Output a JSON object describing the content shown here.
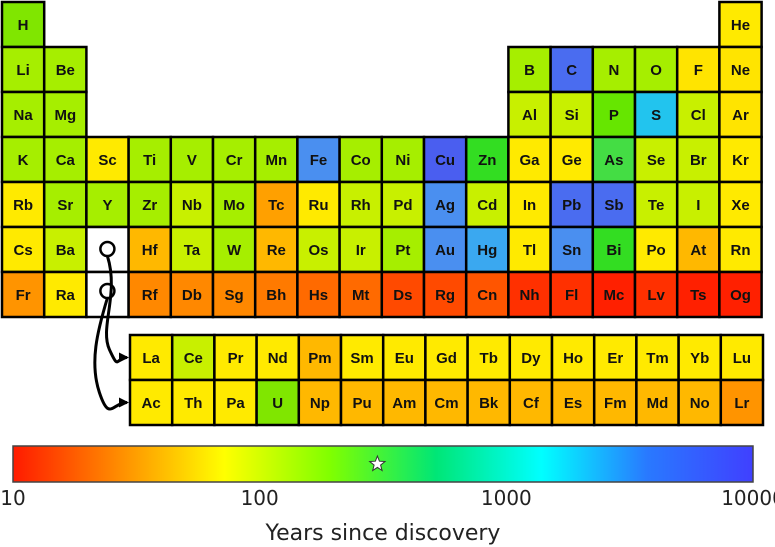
{
  "legend": {
    "title": "Years since discovery",
    "ticks": [
      "10",
      "100",
      "1000",
      "10000"
    ],
    "tick_values": [
      10,
      100,
      1000,
      10000
    ],
    "scale": "log",
    "gradient_colors": [
      "#ff1a00",
      "#ff8c00",
      "#ffff00",
      "#80ff00",
      "#00e676",
      "#00ffff",
      "#2979ff",
      "#4040ff"
    ],
    "marker_value": 300,
    "marker_icon": "star-icon"
  },
  "main_rows": [
    [
      {
        "s": "H",
        "c": "#80e600"
      },
      null,
      null,
      null,
      null,
      null,
      null,
      null,
      null,
      null,
      null,
      null,
      null,
      null,
      null,
      null,
      null,
      {
        "s": "He",
        "c": "#ffea00"
      }
    ],
    [
      {
        "s": "Li",
        "c": "#a6ee00"
      },
      {
        "s": "Be",
        "c": "#a6ee00"
      },
      null,
      null,
      null,
      null,
      null,
      null,
      null,
      null,
      null,
      null,
      {
        "s": "B",
        "c": "#a6ee00"
      },
      {
        "s": "C",
        "c": "#4a6cf0"
      },
      {
        "s": "N",
        "c": "#a6ee00"
      },
      {
        "s": "O",
        "c": "#a6ee00"
      },
      {
        "s": "F",
        "c": "#ffe400"
      },
      {
        "s": "Ne",
        "c": "#ffe400"
      }
    ],
    [
      {
        "s": "Na",
        "c": "#a6ee00"
      },
      {
        "s": "Mg",
        "c": "#a6ee00"
      },
      null,
      null,
      null,
      null,
      null,
      null,
      null,
      null,
      null,
      null,
      {
        "s": "Al",
        "c": "#c8f000"
      },
      {
        "s": "Si",
        "c": "#c8f000"
      },
      {
        "s": "P",
        "c": "#66e600"
      },
      {
        "s": "S",
        "c": "#22c4ee"
      },
      {
        "s": "Cl",
        "c": "#c8f000"
      },
      {
        "s": "Ar",
        "c": "#ffe400"
      }
    ],
    [
      {
        "s": "K",
        "c": "#a6ee00"
      },
      {
        "s": "Ca",
        "c": "#a6ee00"
      },
      {
        "s": "Sc",
        "c": "#ffea00"
      },
      {
        "s": "Ti",
        "c": "#a6ee00"
      },
      {
        "s": "V",
        "c": "#a6ee00"
      },
      {
        "s": "Cr",
        "c": "#a6ee00"
      },
      {
        "s": "Mn",
        "c": "#a6ee00"
      },
      {
        "s": "Fe",
        "c": "#4a8ff0"
      },
      {
        "s": "Co",
        "c": "#a6ee00"
      },
      {
        "s": "Ni",
        "c": "#a6ee00"
      },
      {
        "s": "Cu",
        "c": "#4a5ef0"
      },
      {
        "s": "Zn",
        "c": "#33dd22"
      },
      {
        "s": "Ga",
        "c": "#ffea00"
      },
      {
        "s": "Ge",
        "c": "#ffea00"
      },
      {
        "s": "As",
        "c": "#44dd44"
      },
      {
        "s": "Se",
        "c": "#c8f000"
      },
      {
        "s": "Br",
        "c": "#c8f000"
      },
      {
        "s": "Kr",
        "c": "#ffea00"
      }
    ],
    [
      {
        "s": "Rb",
        "c": "#ffea00"
      },
      {
        "s": "Sr",
        "c": "#a6ee00"
      },
      {
        "s": "Y",
        "c": "#a6ee00"
      },
      {
        "s": "Zr",
        "c": "#a6ee00"
      },
      {
        "s": "Nb",
        "c": "#c8f000"
      },
      {
        "s": "Mo",
        "c": "#a6ee00"
      },
      {
        "s": "Tc",
        "c": "#ffa000"
      },
      {
        "s": "Ru",
        "c": "#ffea00"
      },
      {
        "s": "Rh",
        "c": "#c8f000"
      },
      {
        "s": "Pd",
        "c": "#c8f000"
      },
      {
        "s": "Ag",
        "c": "#4a8ff0"
      },
      {
        "s": "Cd",
        "c": "#c8f000"
      },
      {
        "s": "In",
        "c": "#ffea00"
      },
      {
        "s": "Pb",
        "c": "#4a6cf0"
      },
      {
        "s": "Sb",
        "c": "#4a6cf0"
      },
      {
        "s": "Te",
        "c": "#c8f000"
      },
      {
        "s": "I",
        "c": "#c8f000"
      },
      {
        "s": "Xe",
        "c": "#ffea00"
      }
    ],
    [
      {
        "s": "Cs",
        "c": "#ffea00"
      },
      {
        "s": "Ba",
        "c": "#c8f000"
      },
      {
        "s": "",
        "c": "#ffffff",
        "link": true
      },
      {
        "s": "Hf",
        "c": "#ffb800"
      },
      {
        "s": "Ta",
        "c": "#c8f000"
      },
      {
        "s": "W",
        "c": "#a6ee00"
      },
      {
        "s": "Re",
        "c": "#ffb800"
      },
      {
        "s": "Os",
        "c": "#c8f000"
      },
      {
        "s": "Ir",
        "c": "#c8f000"
      },
      {
        "s": "Pt",
        "c": "#a6ee00"
      },
      {
        "s": "Au",
        "c": "#4a8ff0"
      },
      {
        "s": "Hg",
        "c": "#3aa8f0"
      },
      {
        "s": "Tl",
        "c": "#ffea00"
      },
      {
        "s": "Sn",
        "c": "#4a8ff0"
      },
      {
        "s": "Bi",
        "c": "#33dd22"
      },
      {
        "s": "Po",
        "c": "#ffea00"
      },
      {
        "s": "At",
        "c": "#ffb800"
      },
      {
        "s": "Rn",
        "c": "#ffea00"
      }
    ],
    [
      {
        "s": "Fr",
        "c": "#ff9400"
      },
      {
        "s": "Ra",
        "c": "#ffea00"
      },
      {
        "s": "",
        "c": "#ffffff",
        "link": true
      },
      {
        "s": "Rf",
        "c": "#ff8800"
      },
      {
        "s": "Db",
        "c": "#ff8800"
      },
      {
        "s": "Sg",
        "c": "#ff8800"
      },
      {
        "s": "Bh",
        "c": "#ff7a00"
      },
      {
        "s": "Hs",
        "c": "#ff6a00"
      },
      {
        "s": "Mt",
        "c": "#ff6a00"
      },
      {
        "s": "Ds",
        "c": "#ff4a00"
      },
      {
        "s": "Rg",
        "c": "#ff4a00"
      },
      {
        "s": "Cn",
        "c": "#ff5500"
      },
      {
        "s": "Nh",
        "c": "#ff3000"
      },
      {
        "s": "Fl",
        "c": "#ff3000"
      },
      {
        "s": "Mc",
        "c": "#ff2000"
      },
      {
        "s": "Lv",
        "c": "#ff3000"
      },
      {
        "s": "Ts",
        "c": "#ff2000"
      },
      {
        "s": "Og",
        "c": "#ff2000"
      }
    ]
  ],
  "f_rows": [
    [
      {
        "s": "La",
        "c": "#ffea00"
      },
      {
        "s": "Ce",
        "c": "#c8f000"
      },
      {
        "s": "Pr",
        "c": "#ffea00"
      },
      {
        "s": "Nd",
        "c": "#ffea00"
      },
      {
        "s": "Pm",
        "c": "#ffb800"
      },
      {
        "s": "Sm",
        "c": "#ffea00"
      },
      {
        "s": "Eu",
        "c": "#ffea00"
      },
      {
        "s": "Gd",
        "c": "#ffea00"
      },
      {
        "s": "Tb",
        "c": "#ffea00"
      },
      {
        "s": "Dy",
        "c": "#ffea00"
      },
      {
        "s": "Ho",
        "c": "#ffea00"
      },
      {
        "s": "Er",
        "c": "#ffea00"
      },
      {
        "s": "Tm",
        "c": "#ffea00"
      },
      {
        "s": "Yb",
        "c": "#ffea00"
      },
      {
        "s": "Lu",
        "c": "#ffea00"
      }
    ],
    [
      {
        "s": "Ac",
        "c": "#ffea00"
      },
      {
        "s": "Th",
        "c": "#ffea00"
      },
      {
        "s": "Pa",
        "c": "#ffea00"
      },
      {
        "s": "U",
        "c": "#80e600"
      },
      {
        "s": "Np",
        "c": "#ffb800"
      },
      {
        "s": "Pu",
        "c": "#ffb800"
      },
      {
        "s": "Am",
        "c": "#ffb800"
      },
      {
        "s": "Cm",
        "c": "#ffb800"
      },
      {
        "s": "Bk",
        "c": "#ffb800"
      },
      {
        "s": "Cf",
        "c": "#ffb800"
      },
      {
        "s": "Es",
        "c": "#ffb800"
      },
      {
        "s": "Fm",
        "c": "#ffb800"
      },
      {
        "s": "Md",
        "c": "#ffb800"
      },
      {
        "s": "No",
        "c": "#ffb800"
      },
      {
        "s": "Lr",
        "c": "#ff9400"
      }
    ]
  ]
}
